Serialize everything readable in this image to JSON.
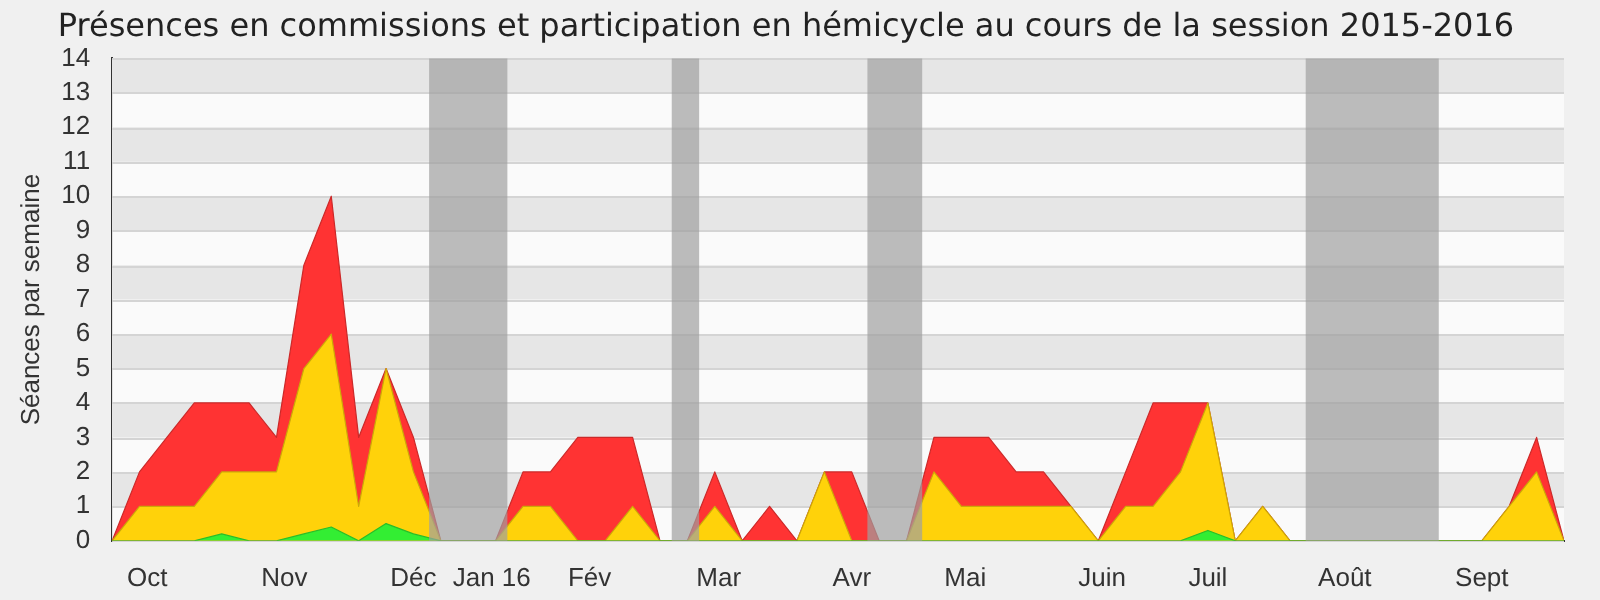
{
  "chart_data": {
    "type": "area",
    "title": "Présences en commissions et participation en hémicycle au cours de la session 2015-2016",
    "ylabel": "Séances par semaine",
    "x": [
      "2015-09-28",
      "2015-10-05",
      "2015-10-12",
      "2015-10-19",
      "2015-10-26",
      "2015-11-02",
      "2015-11-09",
      "2015-11-16",
      "2015-11-23",
      "2015-11-30",
      "2015-12-07",
      "2015-12-14",
      "2015-12-21",
      "2015-12-28",
      "2016-01-04",
      "2016-01-11",
      "2016-01-18",
      "2016-01-25",
      "2016-02-01",
      "2016-02-08",
      "2016-02-15",
      "2016-02-22",
      "2016-02-29",
      "2016-03-07",
      "2016-03-14",
      "2016-03-21",
      "2016-03-28",
      "2016-04-04",
      "2016-04-11",
      "2016-04-18",
      "2016-04-25",
      "2016-05-02",
      "2016-05-09",
      "2016-05-16",
      "2016-05-23",
      "2016-05-30",
      "2016-06-06",
      "2016-06-13",
      "2016-06-20",
      "2016-06-27",
      "2016-07-04",
      "2016-07-11",
      "2016-07-18",
      "2016-07-25",
      "2016-08-01",
      "2016-08-08",
      "2016-08-15",
      "2016-08-22",
      "2016-08-29",
      "2016-09-05",
      "2016-09-12",
      "2016-09-19",
      "2016-09-26",
      "2016-10-03"
    ],
    "series": [
      {
        "color": "#ff3333",
        "values": [
          0,
          2,
          3,
          4,
          4,
          4,
          3,
          8,
          10,
          3,
          5,
          3,
          0,
          0,
          0,
          2,
          2,
          3,
          3,
          3,
          0,
          0,
          2,
          0,
          1,
          0,
          2,
          2,
          0,
          0,
          3,
          3,
          3,
          2,
          2,
          1,
          0,
          2,
          4,
          4,
          4,
          0,
          1,
          0,
          0,
          0,
          0,
          0,
          0,
          0,
          0,
          1,
          3,
          0
        ]
      },
      {
        "color": "#ffd20a",
        "values": [
          0,
          1,
          1,
          1,
          2,
          2,
          2,
          5,
          6,
          1,
          5,
          2,
          0,
          0,
          0,
          1,
          1,
          0,
          0,
          1,
          0,
          0,
          1,
          0,
          0,
          0,
          2,
          0,
          0,
          0,
          2,
          1,
          1,
          1,
          1,
          1,
          0,
          1,
          1,
          2,
          4,
          0,
          1,
          0,
          0,
          0,
          0,
          0,
          0,
          0,
          0,
          1,
          2,
          0
        ]
      },
      {
        "color": "#33ee33",
        "values": [
          0,
          0,
          0,
          0,
          0.2,
          0,
          0,
          0.2,
          0.4,
          0,
          0.5,
          0.2,
          0,
          0,
          0,
          0,
          0,
          0,
          0,
          0,
          0,
          0,
          0,
          0,
          0,
          0,
          0,
          0,
          0,
          0,
          0,
          0,
          0,
          0,
          0,
          0,
          0,
          0,
          0,
          0,
          0.3,
          0,
          0,
          0,
          0,
          0,
          0,
          0,
          0,
          0,
          0,
          0,
          0,
          0
        ]
      }
    ],
    "xlim": [
      "2015-09-28",
      "2016-10-03"
    ],
    "ylim": [
      0,
      14
    ],
    "xticks": [
      {
        "value": "2015-10-07",
        "label": "Oct"
      },
      {
        "value": "2015-11-11",
        "label": "Nov"
      },
      {
        "value": "2015-12-14",
        "label": "Déc"
      },
      {
        "value": "2016-01-03",
        "label": "Jan 16"
      },
      {
        "value": "2016-01-28",
        "label": "Fév"
      },
      {
        "value": "2016-03-01",
        "label": "Mar"
      },
      {
        "value": "2016-04-04",
        "label": "Avr"
      },
      {
        "value": "2016-05-03",
        "label": "Mai"
      },
      {
        "value": "2016-06-07",
        "label": "Juin"
      },
      {
        "value": "2016-07-04",
        "label": "Juil"
      },
      {
        "value": "2016-08-08",
        "label": "Août"
      },
      {
        "value": "2016-09-12",
        "label": "Sept"
      }
    ],
    "yticks": [
      0,
      1,
      2,
      3,
      4,
      5,
      6,
      7,
      8,
      9,
      10,
      11,
      12,
      13,
      14
    ],
    "bands": [
      {
        "axis": "x",
        "from": "2015-12-18",
        "to": "2016-01-07",
        "color": "#a0a0a0"
      },
      {
        "axis": "x",
        "from": "2016-02-18",
        "to": "2016-02-25",
        "color": "#a0a0a0"
      },
      {
        "axis": "x",
        "from": "2016-04-08",
        "to": "2016-04-22",
        "color": "#a0a0a0"
      },
      {
        "axis": "x",
        "from": "2016-07-29",
        "to": "2016-09-01",
        "color": "#a0a0a0"
      }
    ],
    "grid": "y",
    "legend": false
  }
}
